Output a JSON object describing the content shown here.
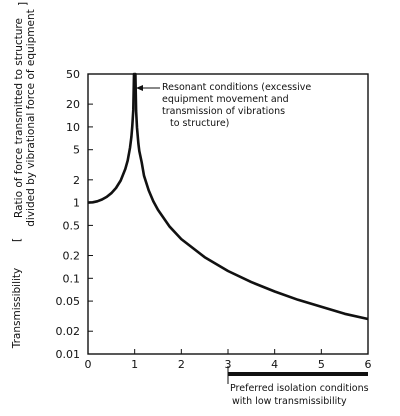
{
  "chart_data": {
    "type": "line",
    "yscale": "log",
    "xlim": [
      0,
      6
    ],
    "ylim": [
      0.01,
      50
    ],
    "x_ticks": [
      0,
      1,
      2,
      3,
      4,
      5,
      6
    ],
    "x_tick_labels": [
      "0",
      "1",
      "2",
      "3",
      "4",
      "5",
      "6"
    ],
    "y_ticks": [
      0.01,
      0.02,
      0.05,
      0.1,
      0.2,
      0.5,
      1,
      2,
      5,
      10,
      20,
      50
    ],
    "y_tick_labels": [
      "0.01",
      "0.02",
      "0.05",
      "0.1",
      "0.2",
      "0.5",
      "1",
      "2",
      "5",
      "10",
      "20",
      "50"
    ],
    "ylabel_main": "Transmissibility",
    "ylabel_definition_line1": "Ratio of force transmitted to structure",
    "ylabel_definition_line2": "divided by vibrational force of equipment",
    "grid": false,
    "series": [
      {
        "x": [
          0,
          0.1,
          0.2,
          0.3,
          0.4,
          0.5,
          0.6,
          0.7,
          0.8,
          0.85,
          0.9,
          0.93,
          0.95,
          0.97
        ],
        "values": [
          1.0,
          1.01,
          1.04,
          1.1,
          1.19,
          1.33,
          1.56,
          1.96,
          2.78,
          3.6,
          5.3,
          7.4,
          10.3,
          16.9
        ]
      },
      {
        "x": [
          1.03,
          1.05,
          1.08,
          1.1,
          1.15,
          1.2,
          1.3,
          1.4,
          1.5,
          1.75,
          2.0,
          2.5,
          3.0,
          3.5,
          4.0,
          4.5,
          5.0,
          5.5,
          6.0
        ],
        "values": [
          16.4,
          9.8,
          6.0,
          4.8,
          3.4,
          2.27,
          1.45,
          1.04,
          0.8,
          0.48,
          0.33,
          0.19,
          0.125,
          0.089,
          0.067,
          0.052,
          0.042,
          0.034,
          0.029
        ]
      }
    ],
    "annotations": {
      "resonant": {
        "lines": [
          "Resonant conditions (excessive",
          "equipment movement and",
          "transmission of vibrations",
          "to structure)"
        ]
      },
      "preferred": {
        "lines": [
          "Preferred isolation conditions",
          "with low transmissibility"
        ],
        "x_from": 3,
        "x_to": 6
      }
    }
  }
}
